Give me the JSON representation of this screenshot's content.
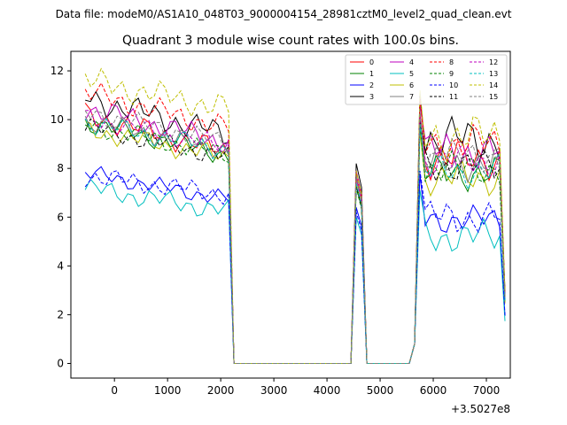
{
  "suptitle": "Data file: modeM0/AS1A10_048T03_9000004154_28981cztM0_level2_quad_clean.evt",
  "chart_data": {
    "type": "line",
    "title": "Quadrant 3 module wise count rates with 100.0s bins.",
    "xlabel": "",
    "ylabel": "",
    "x_offset_label": "+3.5027e8",
    "xlim": [
      -820,
      7450
    ],
    "ylim": [
      -0.6,
      12.8
    ],
    "xticks": [
      0,
      1000,
      2000,
      3000,
      4000,
      5000,
      6000,
      7000
    ],
    "yticks": [
      0,
      2,
      4,
      6,
      8,
      10,
      12
    ],
    "x": [
      -550,
      -450,
      -350,
      -250,
      -150,
      -50,
      50,
      150,
      250,
      350,
      450,
      550,
      650,
      750,
      850,
      950,
      1050,
      1150,
      1250,
      1350,
      1450,
      1550,
      1650,
      1750,
      1850,
      1950,
      2050,
      2150,
      2250,
      2350,
      2450,
      2550,
      2650,
      2750,
      2850,
      2950,
      3050,
      3150,
      3250,
      3350,
      3450,
      3550,
      3650,
      3750,
      3850,
      3950,
      4050,
      4150,
      4250,
      4350,
      4450,
      4550,
      4650,
      4750,
      4850,
      4950,
      5050,
      5150,
      5250,
      5350,
      5450,
      5550,
      5650,
      5750,
      5850,
      5950,
      6050,
      6150,
      6250,
      6350,
      6450,
      6550,
      6650,
      6750,
      6850,
      6950,
      7050,
      7150,
      7250,
      7350
    ],
    "legend_position": "upper right",
    "series": [
      {
        "name": "0",
        "color": "#ff0000",
        "dash": "solid",
        "lvl": 9.2,
        "amp": 0.35,
        "drop": 1.6,
        "spk": 7.6,
        "p2": 9.0,
        "ph": 1.0
      },
      {
        "name": "1",
        "color": "#008000",
        "dash": "solid",
        "lvl": 8.9,
        "amp": 0.3,
        "drop": 1.4,
        "spk": 7.3,
        "p2": 8.4,
        "ph": 2.0
      },
      {
        "name": "2",
        "color": "#0000ff",
        "dash": "solid",
        "lvl": 6.8,
        "amp": 0.25,
        "drop": 1.1,
        "spk": 6.4,
        "p2": 6.5,
        "ph": 3.0
      },
      {
        "name": "3",
        "color": "#000000",
        "dash": "solid",
        "lvl": 9.9,
        "amp": 0.4,
        "drop": 1.6,
        "spk": 8.2,
        "p2": 9.8,
        "ph": 4.0
      },
      {
        "name": "4",
        "color": "#bf00bf",
        "dash": "solid",
        "lvl": 9.5,
        "amp": 0.35,
        "drop": 1.5,
        "spk": 7.9,
        "p2": 9.3,
        "ph": 5.0
      },
      {
        "name": "5",
        "color": "#00bfbf",
        "dash": "solid",
        "lvl": 6.2,
        "amp": 0.3,
        "drop": 1.0,
        "spk": 6.0,
        "p2": 5.8,
        "ph": 6.0
      },
      {
        "name": "6",
        "color": "#bfbf00",
        "dash": "solid",
        "lvl": 8.6,
        "amp": 0.3,
        "drop": 1.2,
        "spk": 7.4,
        "p2": 8.2,
        "ph": 7.0
      },
      {
        "name": "7",
        "color": "#808080",
        "dash": "solid",
        "lvl": 9.0,
        "amp": 0.3,
        "drop": 1.3,
        "spk": 7.6,
        "p2": 8.8,
        "ph": 8.0
      },
      {
        "name": "8",
        "color": "#ff0000",
        "dash": "dashed",
        "lvl": 10.1,
        "amp": 0.35,
        "drop": 1.5,
        "spk": 7.8,
        "p2": 9.6,
        "ph": 9.0
      },
      {
        "name": "9",
        "color": "#008000",
        "dash": "dashed",
        "lvl": 8.8,
        "amp": 0.3,
        "drop": 1.3,
        "spk": 7.2,
        "p2": 8.6,
        "ph": 10.0
      },
      {
        "name": "10",
        "color": "#0000ff",
        "dash": "dashed",
        "lvl": 6.7,
        "amp": 0.3,
        "drop": 0.8,
        "spk": 6.2,
        "p2": 6.6,
        "ph": 11.0
      },
      {
        "name": "11",
        "color": "#000000",
        "dash": "dashed",
        "lvl": 8.7,
        "amp": 0.3,
        "drop": 1.3,
        "spk": 7.3,
        "p2": 8.7,
        "ph": 12.0
      },
      {
        "name": "12",
        "color": "#bf00bf",
        "dash": "dashed",
        "lvl": 9.1,
        "amp": 0.3,
        "drop": 1.3,
        "spk": 7.6,
        "p2": 8.9,
        "ph": 13.0
      },
      {
        "name": "13",
        "color": "#00bfbf",
        "dash": "dashed",
        "lvl": 8.9,
        "amp": 0.3,
        "drop": 1.2,
        "spk": 7.4,
        "p2": 8.5,
        "ph": 14.0
      },
      {
        "name": "14",
        "color": "#bfbf00",
        "dash": "dashed",
        "lvl": 10.6,
        "amp": 0.4,
        "drop": 1.2,
        "spk": 7.9,
        "p2": 9.9,
        "ph": 15.0
      },
      {
        "name": "15",
        "color": "#808080",
        "dash": "dashed",
        "lvl": 9.3,
        "amp": 0.3,
        "drop": 1.3,
        "spk": 7.7,
        "p2": 9.1,
        "ph": 16.0
      }
    ]
  }
}
